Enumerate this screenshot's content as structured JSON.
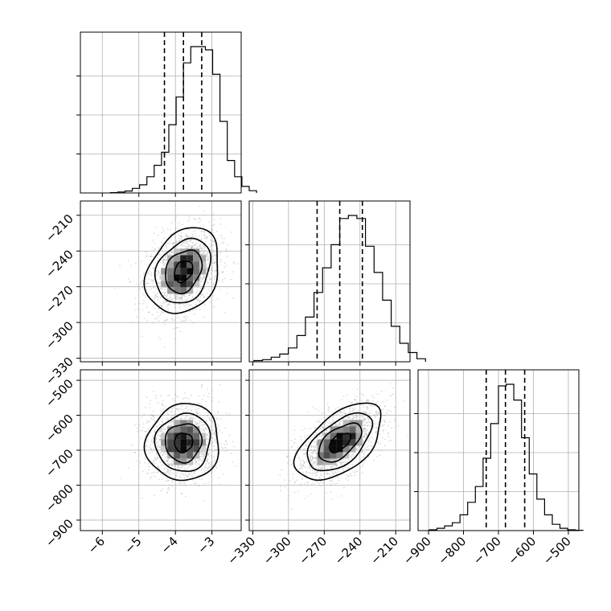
{
  "chart_data": {
    "type": "corner",
    "parameters": [
      {
        "range": [
          -6.6,
          -2.2
        ],
        "ticks": [
          -6,
          -5,
          -4,
          -3
        ],
        "tick_labels": [
          "−6",
          "−5",
          "−4",
          "−3"
        ],
        "quantiles": [
          -4.3,
          -3.78,
          -3.28
        ],
        "mean": -3.78,
        "sd": 0.5
      },
      {
        "range": [
          -333,
          -198
        ],
        "ticks": [
          -330,
          -300,
          -270,
          -240,
          -210
        ],
        "tick_labels": [
          "−330",
          "−300",
          "−270",
          "−240",
          "−210"
        ],
        "quantiles": [
          -276,
          -257,
          -238
        ],
        "mean": -257,
        "sd": 18
      },
      {
        "range": [
          -930,
          -470
        ],
        "ticks": [
          -900,
          -800,
          -700,
          -600,
          -500
        ],
        "tick_labels": [
          "−900",
          "−800",
          "−700",
          "−600",
          "−500"
        ],
        "quantiles": [
          -735,
          -680,
          -625
        ],
        "mean": -678,
        "sd": 55
      }
    ],
    "histograms": [
      [
        0.002,
        0.006,
        0.012,
        0.028,
        0.05,
        0.1,
        0.17,
        0.25,
        0.42,
        0.59,
        0.8,
        0.9,
        0.9,
        0.88,
        0.73,
        0.44,
        0.2,
        0.1,
        0.04,
        0.014
      ],
      [
        0.008,
        0.014,
        0.03,
        0.05,
        0.09,
        0.17,
        0.29,
        0.45,
        0.61,
        0.76,
        0.93,
        0.95,
        0.93,
        0.75,
        0.58,
        0.4,
        0.23,
        0.12,
        0.06,
        0.02
      ],
      [
        0.005,
        0.015,
        0.03,
        0.05,
        0.1,
        0.18,
        0.28,
        0.46,
        0.68,
        0.92,
        0.93,
        0.83,
        0.59,
        0.36,
        0.2,
        0.1,
        0.04,
        0.015,
        0.005,
        0.002
      ]
    ],
    "correlations": {
      "1_0": 0.25,
      "2_0": 0.05,
      "2_1": 0.55
    },
    "contour_levels_sigma": [
      0.5,
      1.0,
      1.5,
      2.0
    ],
    "grid": true,
    "colors": {
      "points": "#9a9a9a",
      "density_dark": "#111111",
      "lines": "#000000"
    }
  }
}
